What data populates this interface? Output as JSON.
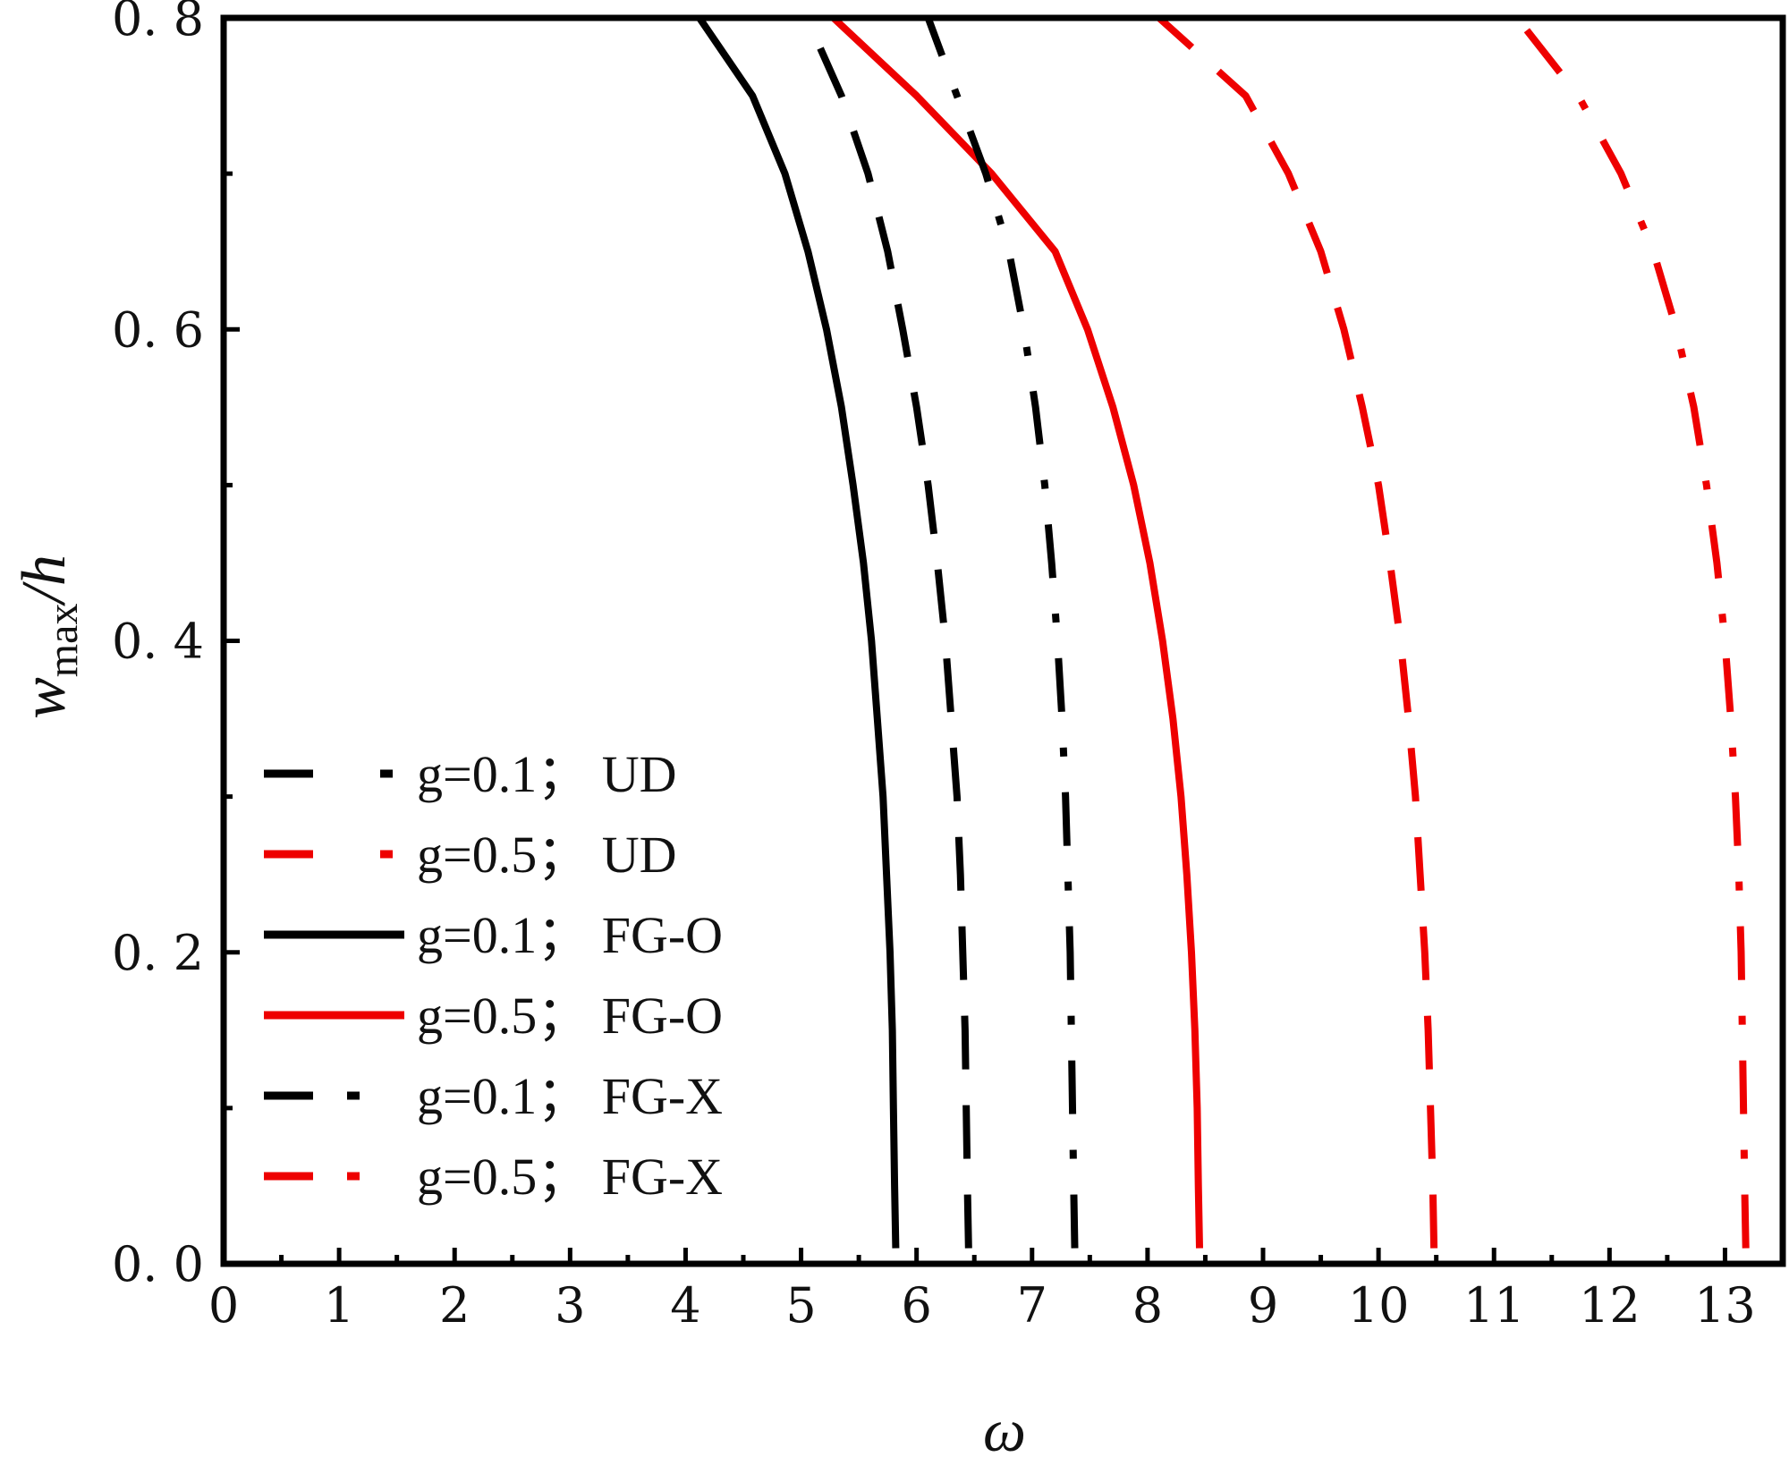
{
  "chart_data": {
    "type": "line",
    "title": "",
    "xlabel": "ω",
    "ylabel": "w_max/h",
    "ylabel_parts": {
      "main": "w",
      "sub": "max",
      "tail": "/h"
    },
    "xlim": [
      0,
      13.5
    ],
    "ylim": [
      0,
      0.8
    ],
    "xticks": [
      0,
      1,
      2,
      3,
      4,
      5,
      6,
      7,
      8,
      9,
      10,
      11,
      12,
      13
    ],
    "xtick_labels": [
      "0",
      "1",
      "2",
      "3",
      "4",
      "5",
      "6",
      "7",
      "8",
      "9",
      "10",
      "11",
      "12",
      "13"
    ],
    "yticks": [
      0.0,
      0.2,
      0.4,
      0.6,
      0.8
    ],
    "ytick_labels": [
      "0. 0",
      "0. 2",
      "0. 4",
      "0. 6",
      "0. 8"
    ],
    "grid": false,
    "legend_position": "bottom-left",
    "y": [
      0.01,
      0.05,
      0.1,
      0.15,
      0.2,
      0.25,
      0.3,
      0.35,
      0.4,
      0.45,
      0.5,
      0.55,
      0.6,
      0.65,
      0.7,
      0.75,
      0.8
    ],
    "series": [
      {
        "name": "g=0.1； UD",
        "color": "#000000",
        "dash": "dash",
        "x": [
          6.45,
          6.44,
          6.43,
          6.42,
          6.4,
          6.38,
          6.35,
          6.3,
          6.25,
          6.18,
          6.1,
          6.0,
          5.88,
          5.75,
          5.58,
          5.35,
          5.05
        ]
      },
      {
        "name": "g=0.5； UD",
        "color": "#ee0000",
        "dash": "dash",
        "x": [
          10.48,
          10.47,
          10.45,
          10.43,
          10.4,
          10.36,
          10.32,
          10.26,
          10.19,
          10.1,
          10.0,
          9.86,
          9.7,
          9.5,
          9.22,
          8.85,
          8.1
        ]
      },
      {
        "name": "g=0.1； FG-O",
        "color": "#000000",
        "dash": "solid",
        "x": [
          5.82,
          5.81,
          5.8,
          5.79,
          5.77,
          5.74,
          5.71,
          5.66,
          5.61,
          5.54,
          5.45,
          5.35,
          5.22,
          5.06,
          4.86,
          4.58,
          4.12
        ]
      },
      {
        "name": "g=0.5； FG-O",
        "color": "#ee0000",
        "dash": "solid",
        "x": [
          8.45,
          8.44,
          8.43,
          8.41,
          8.38,
          8.34,
          8.29,
          8.22,
          8.13,
          8.02,
          7.88,
          7.7,
          7.48,
          7.2,
          6.65,
          6.0,
          5.28
        ]
      },
      {
        "name": "g=0.1； FG-X",
        "color": "#000000",
        "dash": "dashdot",
        "x": [
          7.37,
          7.36,
          7.35,
          7.34,
          7.33,
          7.31,
          7.29,
          7.26,
          7.22,
          7.17,
          7.11,
          7.03,
          6.93,
          6.8,
          6.6,
          6.35,
          6.1
        ]
      },
      {
        "name": "g=0.5； FG-X",
        "color": "#ee0000",
        "dash": "dashdot",
        "x": [
          13.18,
          13.17,
          13.16,
          13.15,
          13.14,
          13.12,
          13.09,
          13.05,
          13.0,
          12.93,
          12.84,
          12.73,
          12.58,
          12.38,
          12.1,
          11.73,
          11.2
        ]
      }
    ]
  }
}
